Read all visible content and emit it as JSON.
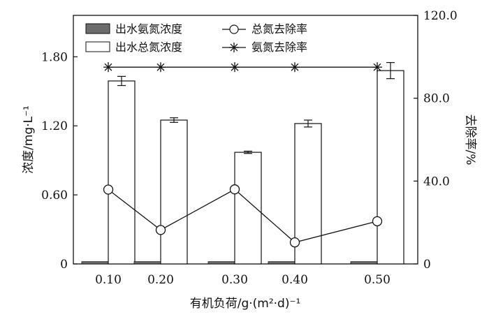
{
  "chart_data": {
    "type": "bar",
    "categories": [
      "0.10",
      "0.20",
      "0.30",
      "0.40",
      "0.50"
    ],
    "xlabel": "有机负荷/g·(m²·d)⁻¹",
    "ylabel": "浓度/mg·L⁻¹",
    "y2label": "去除率/%",
    "ylim": [
      0,
      2.16
    ],
    "y2lim": [
      0,
      120
    ],
    "yticks": [
      "0",
      "0.60",
      "1.20",
      "1.80"
    ],
    "y2ticks": [
      "0",
      "40.0",
      "80.0",
      "120.0"
    ],
    "legend_position": "top-left",
    "series": [
      {
        "name": "出水氨氮浓度",
        "kind": "bar",
        "axis": "left",
        "color": "#6d6d6d",
        "values": [
          0.02,
          0.02,
          0.02,
          0.02,
          0.02
        ]
      },
      {
        "name": "出水总氮浓度",
        "kind": "bar",
        "axis": "left",
        "color": "#ffffff",
        "values": [
          1.59,
          1.25,
          0.97,
          1.22,
          1.68
        ],
        "errors": [
          0.04,
          0.02,
          0.01,
          0.03,
          0.07
        ]
      },
      {
        "name": "总氮去除率",
        "kind": "line",
        "axis": "right",
        "marker": "circle",
        "values": [
          35.9,
          16.4,
          36.0,
          10.4,
          20.6
        ]
      },
      {
        "name": "氨氮去除率",
        "kind": "line",
        "axis": "right",
        "marker": "star",
        "values": [
          95.0,
          95.0,
          95.0,
          95.0,
          95.0
        ]
      }
    ]
  }
}
